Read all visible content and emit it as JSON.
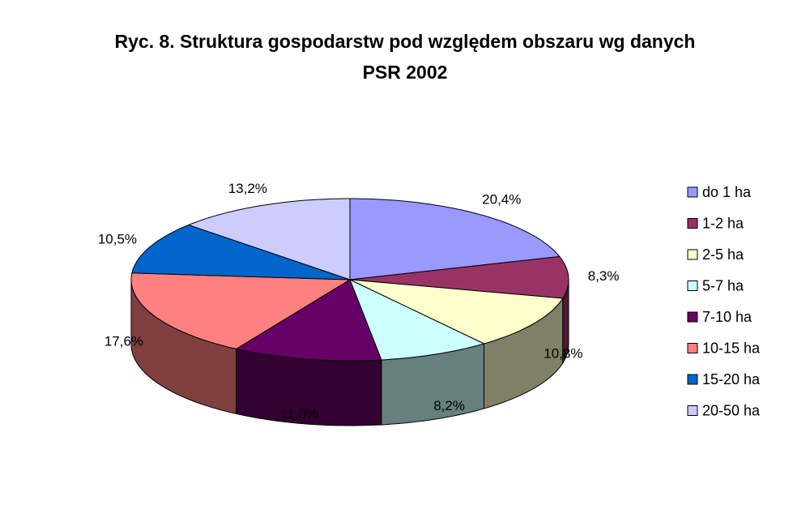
{
  "chart_data": {
    "type": "pie",
    "title": "Ryc. 8. Struktura gospodarstw pod względem obszaru wg danych PSR 2002",
    "categories": [
      "do 1 ha",
      "1-2 ha",
      "2-5 ha",
      "5-7 ha",
      "7-10 ha",
      "10-15 ha",
      "15-20 ha",
      "20-50 ha"
    ],
    "values": [
      20.4,
      8.3,
      10.8,
      8.2,
      11.0,
      17.6,
      10.5,
      13.2
    ],
    "value_labels": [
      "20,4%",
      "8,3%",
      "10,8%",
      "8,2%",
      "11,0%",
      "17,6%",
      "10,5%",
      "13,2%"
    ],
    "colors": [
      "#9999ff",
      "#993366",
      "#ffffcc",
      "#ccffff",
      "#660066",
      "#ff8080",
      "#0066cc",
      "#ccccff"
    ],
    "legend": "right"
  }
}
